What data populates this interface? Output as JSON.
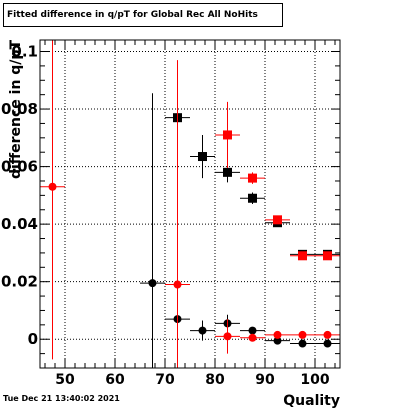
{
  "chart_data": {
    "type": "scatter",
    "title": "Fitted difference in q/pT for Global Rec All NoHits",
    "xlabel": "Quality",
    "ylabel": "difference in q/pT",
    "xlim": [
      45,
      105
    ],
    "ylim": [
      -0.01,
      0.104
    ],
    "x_ticks": [
      50,
      60,
      70,
      80,
      90,
      100
    ],
    "y_ticks": [
      0,
      0.02,
      0.04,
      0.06,
      0.08,
      0.1
    ],
    "x_tick_labels": [
      "50",
      "60",
      "70",
      "80",
      "90",
      "100"
    ],
    "y_tick_labels": [
      "0",
      "0.02",
      "0.04",
      "0.06",
      "0.08",
      "0.1"
    ],
    "grid": true,
    "series": [
      {
        "color": "#000000",
        "marker": "square",
        "points": [
          {
            "x": 72.5,
            "y": 0.077,
            "xerr": 2.5,
            "yerr": 0
          },
          {
            "x": 77.5,
            "y": 0.0635,
            "xerr": 2.5,
            "yerr": 0.0075
          },
          {
            "x": 82.5,
            "y": 0.058,
            "xerr": 2.5,
            "yerr": 0.0035
          },
          {
            "x": 87.5,
            "y": 0.049,
            "xerr": 2.5,
            "yerr": 0.002
          },
          {
            "x": 92.5,
            "y": 0.0405,
            "xerr": 2.5,
            "yerr": 0.001
          },
          {
            "x": 97.5,
            "y": 0.0295,
            "xerr": 2.5,
            "yerr": 0.0005
          },
          {
            "x": 102.5,
            "y": 0.0295,
            "xerr": 2.5,
            "yerr": 0.0005
          }
        ]
      },
      {
        "color": "#ff0000",
        "marker": "square",
        "points": [
          {
            "x": 82.5,
            "y": 0.071,
            "xerr": 2.5,
            "yerr": 0.0115
          },
          {
            "x": 87.5,
            "y": 0.056,
            "xerr": 2.5,
            "yerr": 0.002
          },
          {
            "x": 92.5,
            "y": 0.0415,
            "xerr": 2.5,
            "yerr": 0.001
          },
          {
            "x": 97.5,
            "y": 0.029,
            "xerr": 2.5,
            "yerr": 0.0005
          },
          {
            "x": 102.5,
            "y": 0.029,
            "xerr": 2.5,
            "yerr": 0.0005
          }
        ]
      },
      {
        "color": "#000000",
        "marker": "circle",
        "points": [
          {
            "x": 67.5,
            "y": 0.0195,
            "xerr": 2.5,
            "yerr": 0.066
          },
          {
            "x": 72.5,
            "y": 0.007,
            "xerr": 2.5,
            "yerr": 0.007
          },
          {
            "x": 77.5,
            "y": 0.003,
            "xerr": 2.5,
            "yerr": 0.0035
          },
          {
            "x": 82.5,
            "y": 0.0055,
            "xerr": 2.5,
            "yerr": 0.003
          },
          {
            "x": 87.5,
            "y": 0.003,
            "xerr": 2.5,
            "yerr": 0.001
          },
          {
            "x": 92.5,
            "y": -0.0005,
            "xerr": 2.5,
            "yerr": 0.0005
          },
          {
            "x": 97.5,
            "y": -0.0015,
            "xerr": 2.5,
            "yerr": 0.0003
          },
          {
            "x": 102.5,
            "y": -0.0015,
            "xerr": 2.5,
            "yerr": 0.0003
          }
        ]
      },
      {
        "color": "#ff0000",
        "marker": "circle",
        "points": [
          {
            "x": 47.5,
            "y": 0.053,
            "xerr": 2.5,
            "yerr": 0.06
          },
          {
            "x": 72.5,
            "y": 0.019,
            "xerr": 2.5,
            "yerr": 0.078
          },
          {
            "x": 82.5,
            "y": 0.001,
            "xerr": 2.5,
            "yerr": 0.006
          },
          {
            "x": 87.5,
            "y": 0.0005,
            "xerr": 2.5,
            "yerr": 0.001
          },
          {
            "x": 92.5,
            "y": 0.0015,
            "xerr": 2.5,
            "yerr": 0.0005
          },
          {
            "x": 97.5,
            "y": 0.0015,
            "xerr": 2.5,
            "yerr": 0.0003
          },
          {
            "x": 102.5,
            "y": 0.0015,
            "xerr": 2.5,
            "yerr": 0.0003
          }
        ]
      }
    ]
  },
  "footer": {
    "timestamp": "Tue Dec 21 13:40:02 2021"
  }
}
